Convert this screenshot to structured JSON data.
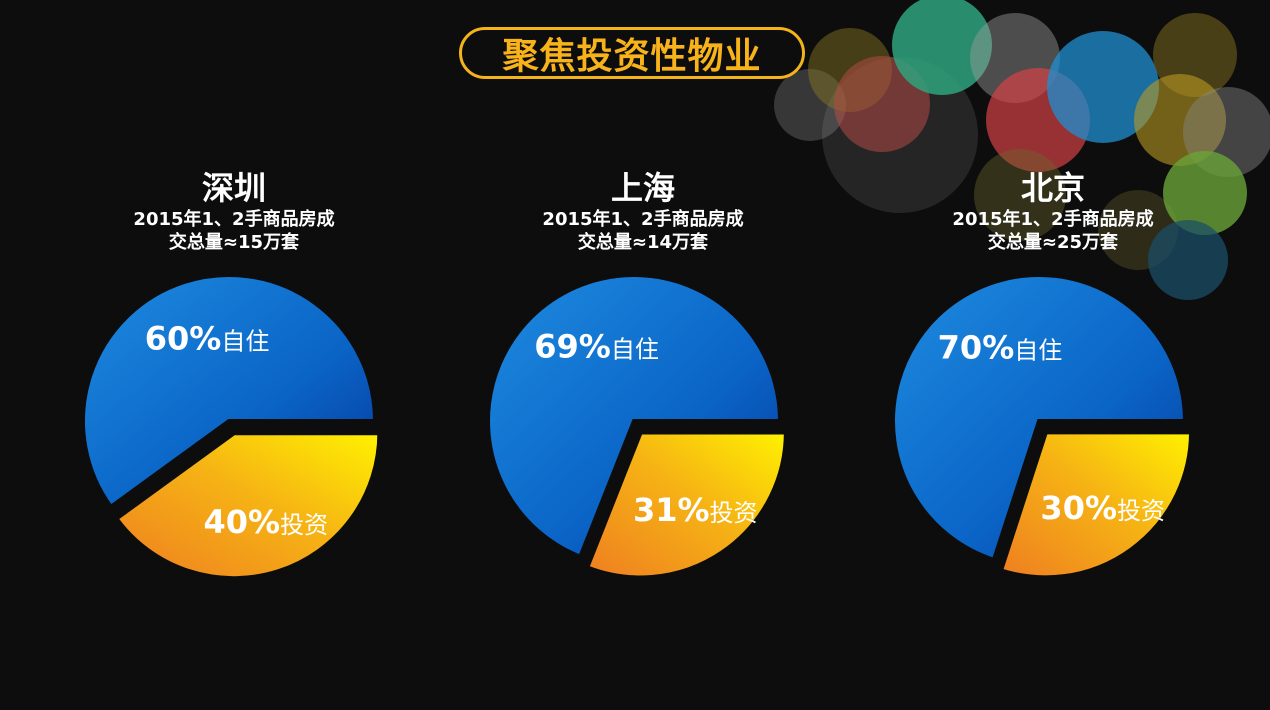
{
  "title": "聚焦投资性物业",
  "colors": {
    "accent": "#f7b319",
    "self_occupied": "#0a5fc4",
    "investment": "#f3a21b",
    "background": "#0d0d0e"
  },
  "cities": [
    {
      "name": "深圳",
      "desc_line1": "2015年1、2手商品房成",
      "desc_line2": "交总量≈15万套"
    },
    {
      "name": "上海",
      "desc_line1": "2015年1、2手商品房成",
      "desc_line2": "交总量≈14万套"
    },
    {
      "name": "北京",
      "desc_line1": "2015年1、2手商品房成",
      "desc_line2": "交总量≈25万套"
    }
  ],
  "chart_data": [
    {
      "type": "pie",
      "title": "深圳",
      "categories": [
        "自住",
        "投资"
      ],
      "values": [
        60,
        40
      ],
      "labels": [
        {
          "pct": "60%",
          "text": "自住"
        },
        {
          "pct": "40%",
          "text": "投资"
        }
      ]
    },
    {
      "type": "pie",
      "title": "上海",
      "categories": [
        "自住",
        "投资"
      ],
      "values": [
        69,
        31
      ],
      "labels": [
        {
          "pct": "69%",
          "text": "自住"
        },
        {
          "pct": "31%",
          "text": "投资"
        }
      ]
    },
    {
      "type": "pie",
      "title": "北京",
      "categories": [
        "自住",
        "投资"
      ],
      "values": [
        70,
        30
      ],
      "labels": [
        {
          "pct": "70%",
          "text": "自住"
        },
        {
          "pct": "30%",
          "text": "投资"
        }
      ]
    }
  ]
}
